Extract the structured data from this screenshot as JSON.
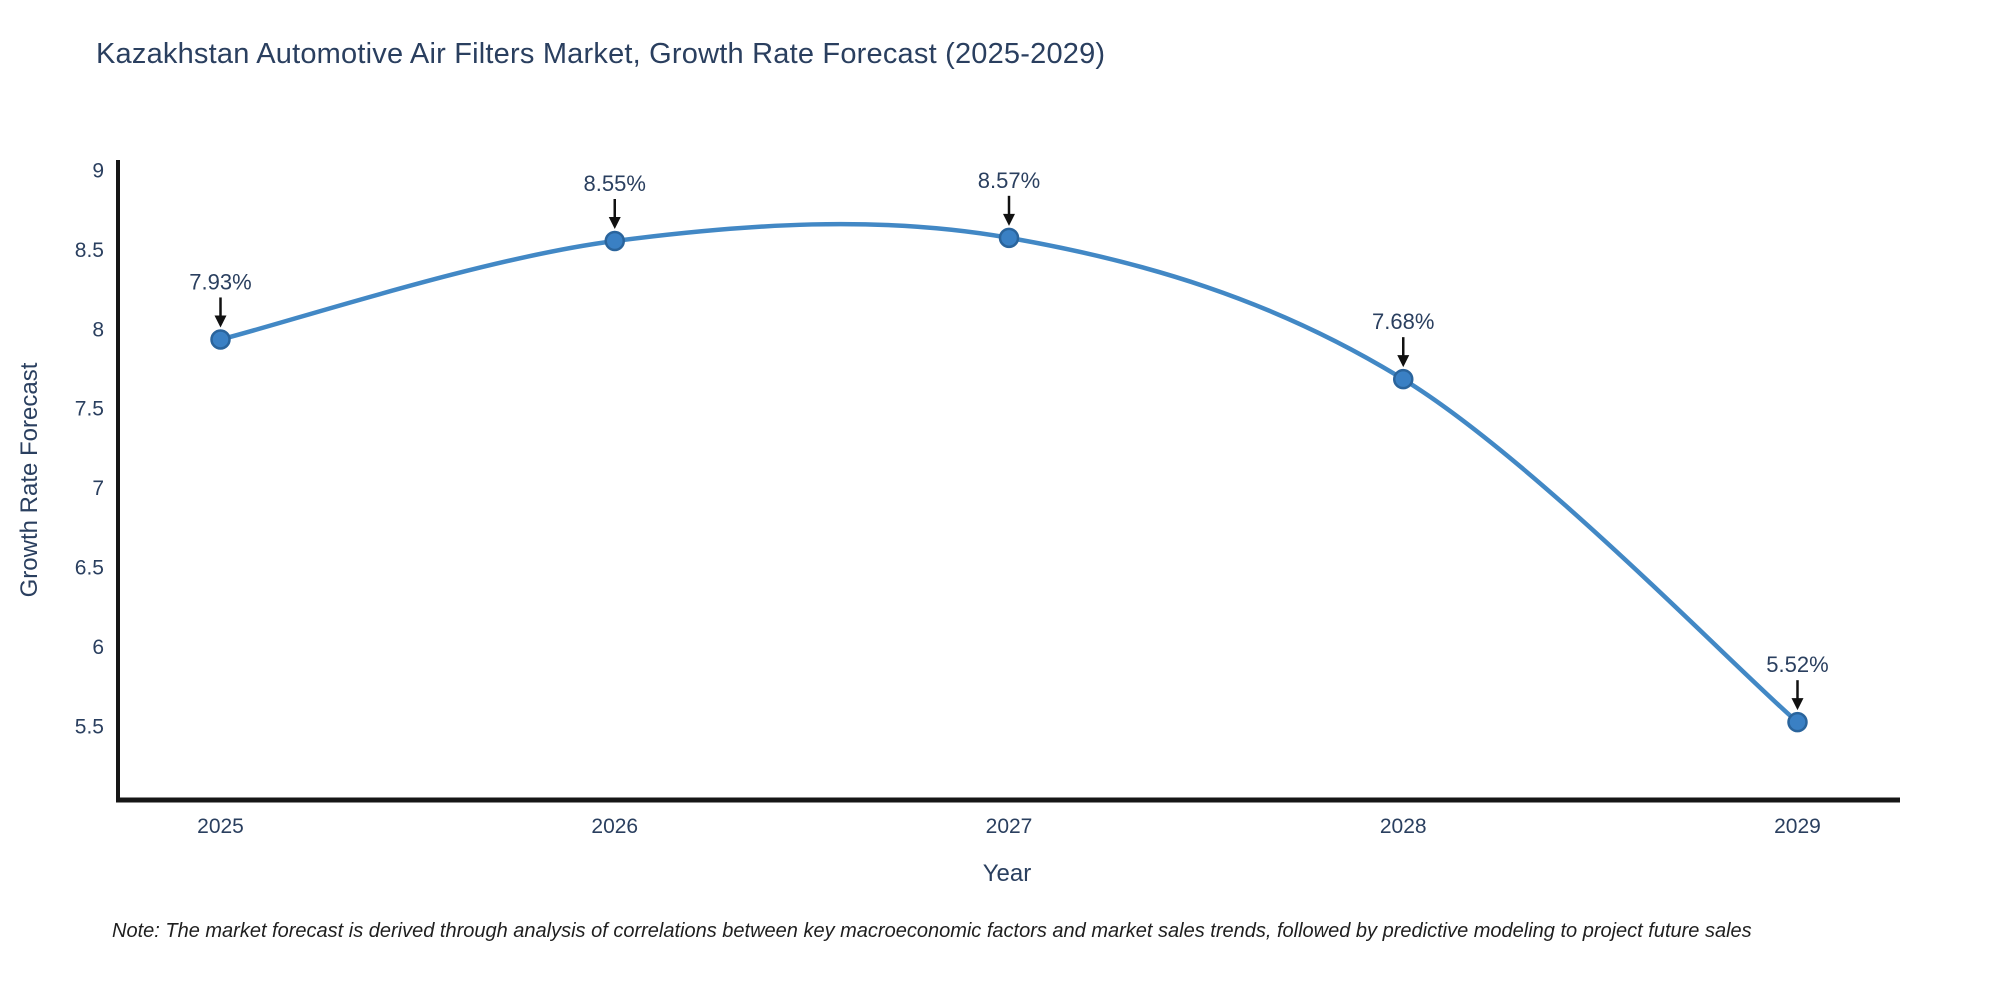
{
  "figure": {
    "note": "Note: The market forecast is derived through analysis of correlations between key macroeconomic factors and market sales trends, followed by predictive modeling to project future sales"
  },
  "chart_data": {
    "type": "line",
    "title": "Kazakhstan Automotive Air Filters Market, Growth Rate Forecast (2025-2029)",
    "xlabel": "Year",
    "ylabel": "Growth Rate Forecast",
    "x": [
      2025,
      2026,
      2027,
      2028,
      2029
    ],
    "series": [
      {
        "name": "Growth Rate Forecast",
        "values": [
          7.93,
          8.55,
          8.57,
          7.68,
          5.52
        ]
      }
    ],
    "point_labels": [
      "7.93%",
      "8.55%",
      "8.57%",
      "7.68%",
      "5.52%"
    ],
    "xticks": [
      "2025",
      "2026",
      "2027",
      "2028",
      "2029"
    ],
    "yticks": [
      9,
      8.5,
      8,
      7.5,
      7,
      6.5,
      6,
      5.5
    ],
    "xlim": [
      2024.74,
      2029.26
    ],
    "ylim": [
      5.03,
      9.06
    ],
    "line_shape": "spline",
    "grid": false,
    "legend": "none",
    "colors": {
      "line": "#4288c5",
      "marker_fill": "#3a80c4",
      "marker_stroke": "#2a649c",
      "annotation_arrow": "#111111",
      "text": "#2a3f5f",
      "axis": "#161616",
      "background": "#ffffff"
    }
  }
}
